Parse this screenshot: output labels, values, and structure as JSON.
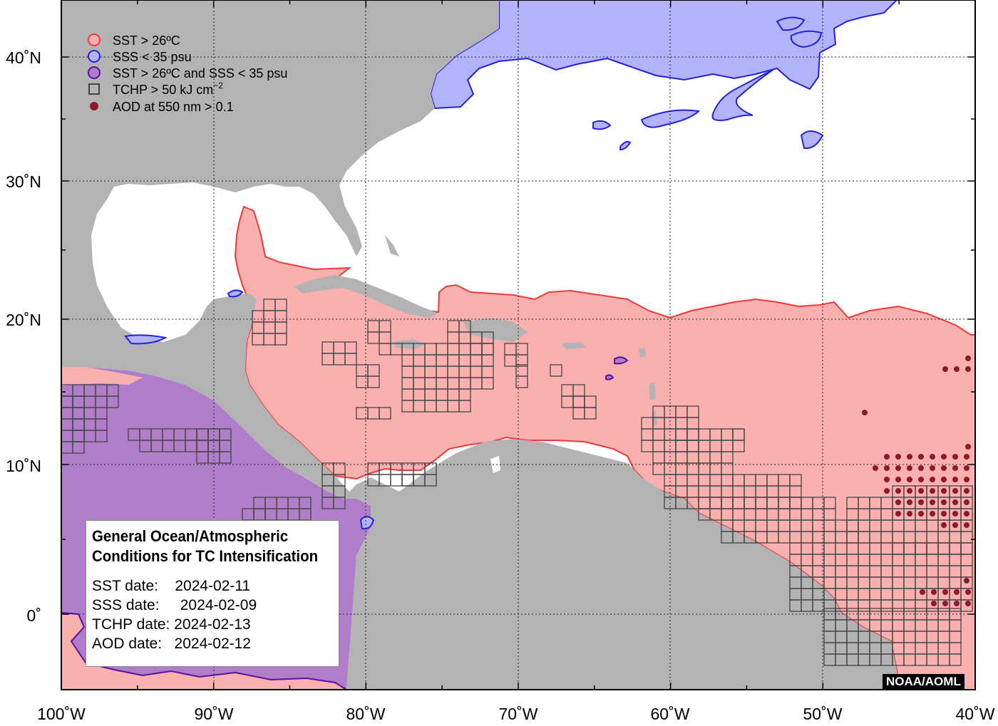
{
  "map": {
    "lon_range": [
      "100˚W",
      "40˚W"
    ],
    "lat_range": [
      "5˚S",
      "44˚N"
    ],
    "projection": "plate carree",
    "grid": "dotted",
    "colors": {
      "land": "#b3b3b3",
      "ocean": "#ffffff",
      "sst": "#fbb0b0",
      "sst_edge": "#ee3a3a",
      "sss": "#b2b3fb",
      "sss_edge": "#2222dd",
      "both": "#b07ec8",
      "both_edge": "#5a0fa0",
      "tchp_box": "#444444",
      "aod": "#8b1a2a"
    }
  },
  "axes": {
    "x_ticks": [
      "100˚W",
      "90˚W",
      "80˚W",
      "70˚W",
      "60˚W",
      "50˚W",
      "40˚W"
    ],
    "y_ticks": [
      "40˚N",
      "30˚N",
      "20˚N",
      "10˚N",
      "0˚"
    ]
  },
  "legend": [
    {
      "label": "SST > 26ºC",
      "marker": "circle",
      "color": "#fbb0b0"
    },
    {
      "label": "SSS < 35 psu",
      "marker": "circle",
      "color": "#b2b3fb"
    },
    {
      "label": "SST > 26ºC and SSS < 35 psu",
      "marker": "circle",
      "color": "#b07ec8"
    },
    {
      "label": "TCHP > 50 kJ cm",
      "superscript": "−2",
      "marker": "square",
      "color": "#444444"
    },
    {
      "label": "AOD at 550 nm > 0.1",
      "marker": "dot",
      "color": "#8b1a2a"
    }
  ],
  "info": {
    "title_line1": "General Ocean/Atmospheric",
    "title_line2": "Conditions for TC Intensification",
    "rows": [
      "SST date:    2024-02-11",
      "SSS date:     2024-02-09",
      "TCHP date: 2024-02-13",
      "AOD date:   2024-02-12"
    ]
  },
  "credit": "NOAA/AOML"
}
